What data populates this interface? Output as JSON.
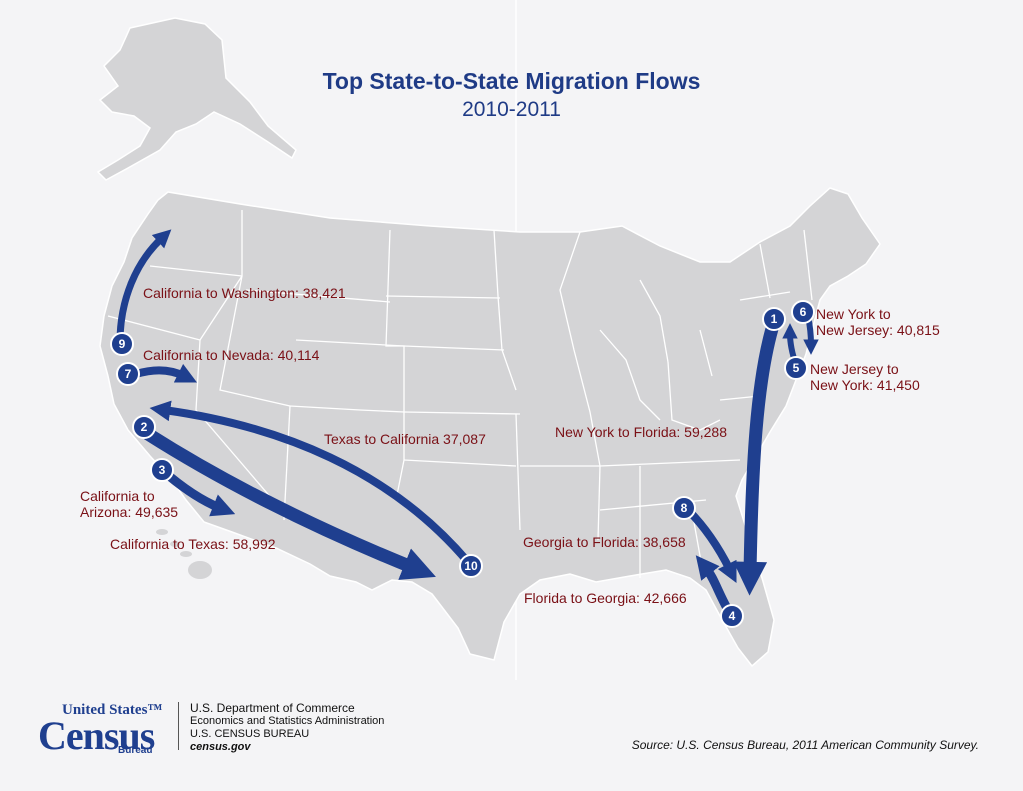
{
  "title": "Top State-to-State Migration Flows",
  "subtitle": "2010-2011",
  "colors": {
    "arrow": "#1f3f8f",
    "label": "#7a1016",
    "land": "#d4d4d6",
    "borders": "#ffffff",
    "background": "#f4f4f6"
  },
  "flows": [
    {
      "rank": "1",
      "text": "New York to Florida: 59,288"
    },
    {
      "rank": "2",
      "text": "California to Texas: 58,992"
    },
    {
      "rank": "3",
      "text_line1": "California to",
      "text_line2": "Arizona: 49,635"
    },
    {
      "rank": "4",
      "text": "Florida to Georgia: 42,666"
    },
    {
      "rank": "5",
      "text_line1": "New Jersey to",
      "text_line2": "New York: 41,450"
    },
    {
      "rank": "6",
      "text_line1": "New York to",
      "text_line2": "New Jersey: 40,815"
    },
    {
      "rank": "7",
      "text": "California to Nevada: 40,114"
    },
    {
      "rank": "8",
      "text": "Georgia to Florida: 38,658"
    },
    {
      "rank": "9",
      "text": "California to Washington: 38,421"
    },
    {
      "rank": "10",
      "text": "Texas to California 37,087"
    }
  ],
  "footer": {
    "logo_us": "United States™",
    "logo_census": "Census",
    "logo_bureau": "Bureau",
    "dept": "U.S. Department of Commerce",
    "admin": "Economics and Statistics Administration",
    "bureau": "U.S. CENSUS BUREAU",
    "url": "census.gov",
    "source": "Source: U.S. Census Bureau, 2011 American Community Survey."
  }
}
